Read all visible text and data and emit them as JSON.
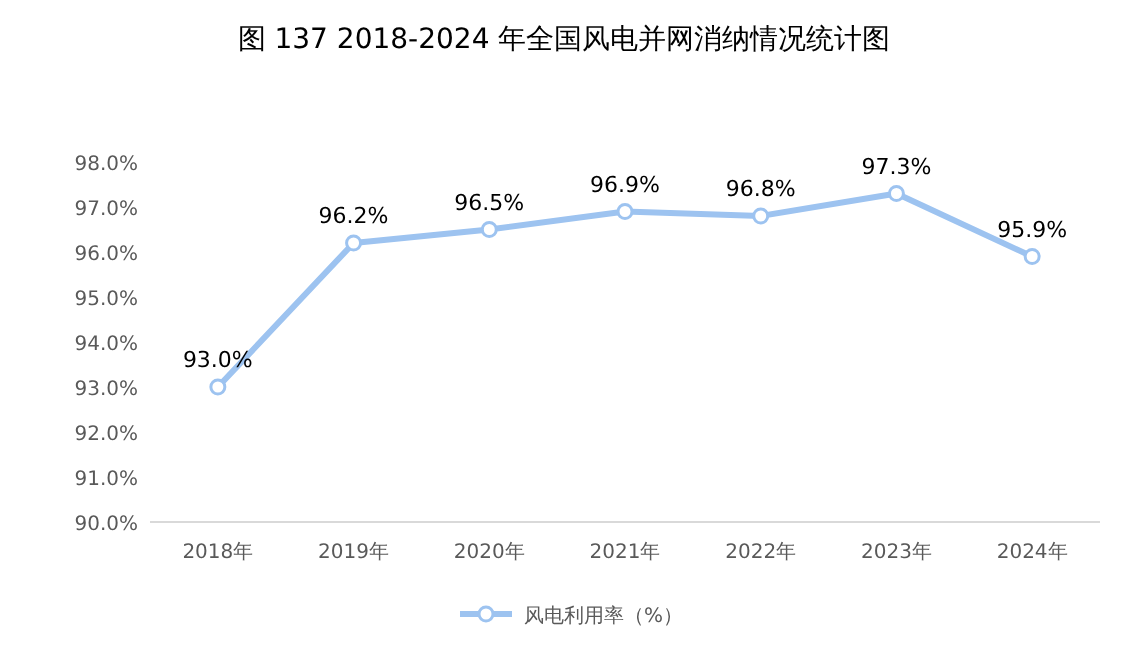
{
  "chart_data": {
    "type": "line",
    "title": "图 137 2018-2024 年全国风电并网消纳情况统计图",
    "categories": [
      "2018年",
      "2019年",
      "2020年",
      "2021年",
      "2022年",
      "2023年",
      "2024年"
    ],
    "series": [
      {
        "name": "风电利用率（%）",
        "color": "#9dc3f0",
        "values": [
          93.0,
          96.2,
          96.5,
          96.9,
          96.8,
          97.3,
          95.9
        ],
        "value_labels": [
          "93.0%",
          "96.2%",
          "96.5%",
          "96.9%",
          "96.8%",
          "97.3%",
          "95.9%"
        ]
      }
    ],
    "ylim": [
      90,
      98
    ],
    "yticks": [
      {
        "value": 90,
        "label": "90.0%"
      },
      {
        "value": 91,
        "label": "91.0%"
      },
      {
        "value": 92,
        "label": "92.0%"
      },
      {
        "value": 93,
        "label": "93.0%"
      },
      {
        "value": 94,
        "label": "94.0%"
      },
      {
        "value": 95,
        "label": "95.0%"
      },
      {
        "value": 96,
        "label": "96.0%"
      },
      {
        "value": 97,
        "label": "97.0%"
      },
      {
        "value": 98,
        "label": "98.0%"
      }
    ],
    "grid": false,
    "legend": "bottom",
    "marker": "circle",
    "line_style": "solid"
  }
}
